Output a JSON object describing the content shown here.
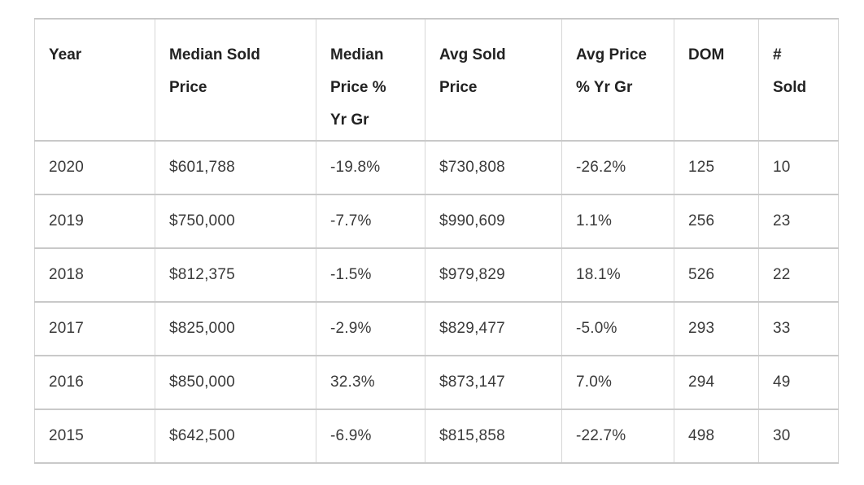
{
  "chart_data": {
    "type": "table",
    "title": "",
    "columns": [
      "Year",
      "Median Sold Price",
      "Median Price % Yr Gr",
      "Avg Sold Price",
      "Avg Price % Yr Gr",
      "DOM",
      "# Sold"
    ],
    "rows": [
      [
        "2020",
        "$601,788",
        "-19.8%",
        "$730,808",
        "-26.2%",
        "125",
        "10"
      ],
      [
        "2019",
        "$750,000",
        "-7.7%",
        "$990,609",
        "1.1%",
        "256",
        "23"
      ],
      [
        "2018",
        "$812,375",
        "-1.5%",
        "$979,829",
        "18.1%",
        "526",
        "22"
      ],
      [
        "2017",
        "$825,000",
        "-2.9%",
        "$829,477",
        "-5.0%",
        "293",
        "33"
      ],
      [
        "2016",
        "$850,000",
        "32.3%",
        "$873,147",
        "7.0%",
        "294",
        "49"
      ],
      [
        "2015",
        "$642,500",
        "-6.9%",
        "$815,858",
        "-22.7%",
        "498",
        "30"
      ]
    ]
  },
  "colors": {
    "background": "#ffffff",
    "border_horizontal": "#c9c9c9",
    "border_vertical": "#d6d6d6",
    "header_text": "#222222",
    "body_text": "#3a3a3a"
  }
}
